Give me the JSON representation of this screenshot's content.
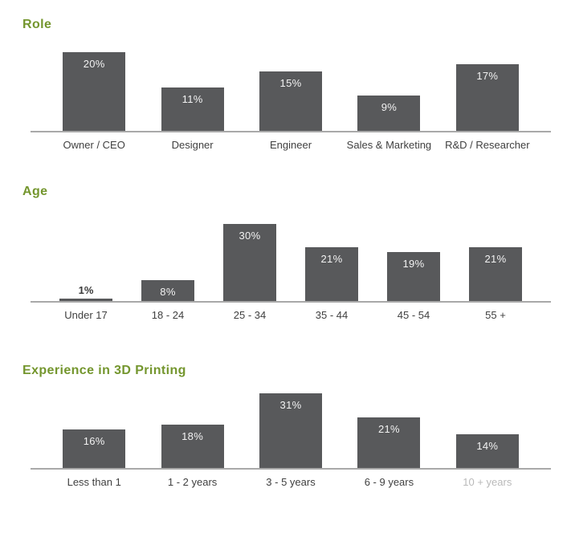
{
  "page_title": "Survey demographics charts",
  "colors": {
    "title_green": "#74962e",
    "bar_fill": "#58595b",
    "value_label_inside": "#f2f2f2",
    "value_label_outside": "#3a3a3a",
    "category_label": "#404040",
    "category_label_faded": "#8f8f8f",
    "axis_line": "#a9a9a9",
    "background": "#ffffff"
  },
  "chart_data": [
    {
      "type": "bar",
      "title": "Role",
      "categories": [
        "Owner / CEO",
        "Designer",
        "Engineer",
        "Sales & Marketing",
        "R&D / Researcher"
      ],
      "values": [
        20,
        11,
        15,
        9,
        17
      ],
      "value_labels": [
        "20%",
        "11%",
        "15%",
        "9%",
        "17%"
      ],
      "unit": "%",
      "xlabel": "",
      "ylabel": "",
      "ylim": [
        0,
        20
      ],
      "grid": false,
      "legend": false
    },
    {
      "type": "bar",
      "title": "Age",
      "categories": [
        "Under 17",
        "18 - 24",
        "25 - 34",
        "35 - 44",
        "45 - 54",
        "55 +"
      ],
      "values": [
        1,
        8,
        30,
        21,
        19,
        21
      ],
      "value_labels": [
        "1%",
        "8%",
        "30%",
        "21%",
        "19%",
        "21%"
      ],
      "unit": "%",
      "xlabel": "",
      "ylabel": "",
      "ylim": [
        0,
        30
      ],
      "grid": false,
      "legend": false
    },
    {
      "type": "bar",
      "title": "Experience in 3D Printing",
      "categories": [
        "Less than 1",
        "1 - 2 years",
        "3 - 5 years",
        "6 - 9 years",
        "10 + years"
      ],
      "values": [
        16,
        18,
        31,
        21,
        14
      ],
      "value_labels": [
        "16%",
        "18%",
        "31%",
        "21%",
        "14%"
      ],
      "unit": "%",
      "xlabel": "",
      "ylabel": "",
      "ylim": [
        0,
        31
      ],
      "grid": false,
      "legend": false,
      "faded_category_index": 4,
      "watermark_over_label": true
    }
  ]
}
